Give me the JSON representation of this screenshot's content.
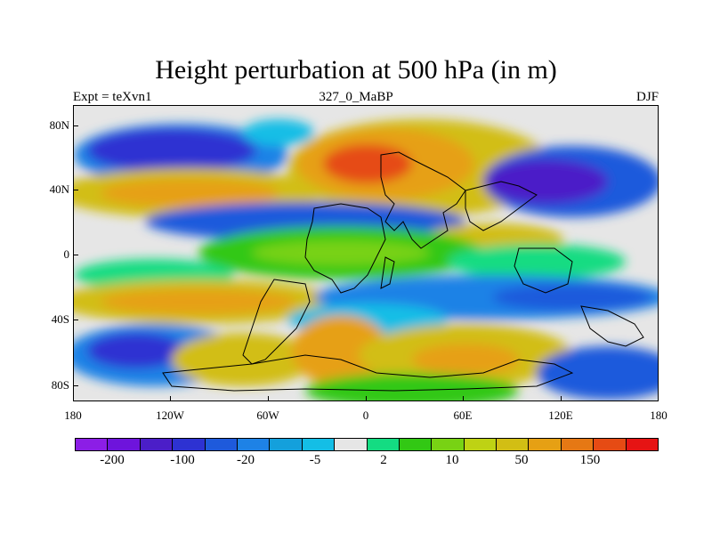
{
  "title": "Height perturbation at 500 hPa (in m)",
  "labels": {
    "left": "Expt = teXvn1",
    "center": "327_0_MaBP",
    "right": "DJF"
  },
  "y_ticks": [
    "80N",
    "40N",
    "0",
    "40S",
    "80S"
  ],
  "x_ticks": [
    "180",
    "120W",
    "60W",
    "0",
    "60E",
    "120E",
    "180"
  ],
  "colorbar": {
    "colors": [
      "#8c1ee6",
      "#6e14dc",
      "#4b1ec8",
      "#2d32d2",
      "#1e5adc",
      "#1e82e6",
      "#14a0dc",
      "#14bee6",
      "#e6e6e6",
      "#14dc82",
      "#32c814",
      "#78d214",
      "#bed214",
      "#d2be14",
      "#e6a014",
      "#e67814",
      "#e64b14",
      "#e61414"
    ],
    "labels": [
      "-200",
      "-100",
      "-20",
      "-5",
      "2",
      "10",
      "50",
      "150"
    ]
  },
  "colors": {
    "background": "#e6e6e6",
    "strong_negative": "#4b1ec8",
    "negative": "#1e5adc",
    "weak_negative": "#14bee6",
    "weak_positive": "#32c814",
    "positive": "#d2be14",
    "strong_positive": "#e64b14"
  }
}
